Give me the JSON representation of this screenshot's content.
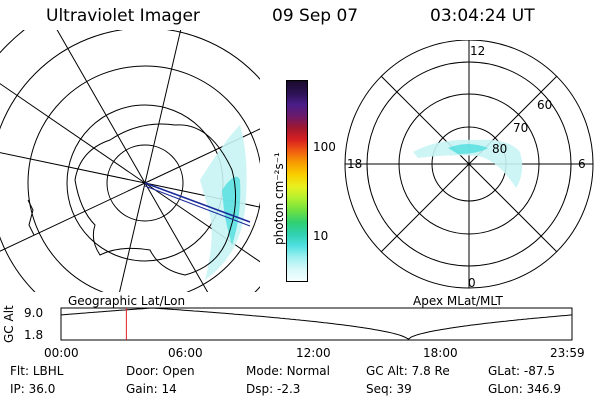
{
  "header": {
    "title": "Ultraviolet Imager",
    "date": "09 Sep 07",
    "time": "03:04:24 UT"
  },
  "left_map": {
    "caption": "Geographic Lat/Lon"
  },
  "colorbar": {
    "unit_label": "photon cm⁻²s⁻¹",
    "tick_top": "100",
    "tick_bottom": "10",
    "colors": [
      "#1a0a2a",
      "#2b1152",
      "#4a1d88",
      "#6b1a6b",
      "#a01830",
      "#d82020",
      "#f06010",
      "#f8a000",
      "#f8d000",
      "#e8f020",
      "#b0f030",
      "#70e040",
      "#30d070",
      "#30d0b0",
      "#50e0e0",
      "#a0f0f0",
      "#d8f8f8",
      "#f4ffff"
    ]
  },
  "right_map": {
    "caption": "Apex MLat/MLT",
    "mlt_top": "12",
    "mlt_left": "18",
    "mlt_right": "6",
    "mlt_bottom": "0",
    "lat_60": "60",
    "lat_70": "70",
    "lat_80": "80"
  },
  "altitude_plot": {
    "ylabel": "GC Alt",
    "ymax_label": "9.0",
    "ymin_label": "1.8",
    "ymin": 1.8,
    "ymax": 9.0,
    "x_ticks": [
      "00:00",
      "06:00",
      "12:00",
      "18:00",
      "23:59"
    ],
    "current_time_hours": 3.07,
    "marker_color": "#e02020"
  },
  "info": {
    "filter_label": "Flt:",
    "filter_value": "LBHL",
    "ip_label": "IP:",
    "ip_value": "36.0",
    "door_label": "Door:",
    "door_value": "Open",
    "gain_label": "Gain:",
    "gain_value": "14",
    "mode_label": "Mode:",
    "mode_value": "Normal",
    "dsp_label": "Dsp:",
    "dsp_value": "-2.3",
    "gcalt_label": "GC Alt:",
    "gcalt_value": "7.8 Re",
    "seq_label": "Seq:",
    "seq_value": "39",
    "glat_label": "GLat:",
    "glat_value": "-87.5",
    "glon_label": "GLon:",
    "glon_value": "346.9"
  }
}
